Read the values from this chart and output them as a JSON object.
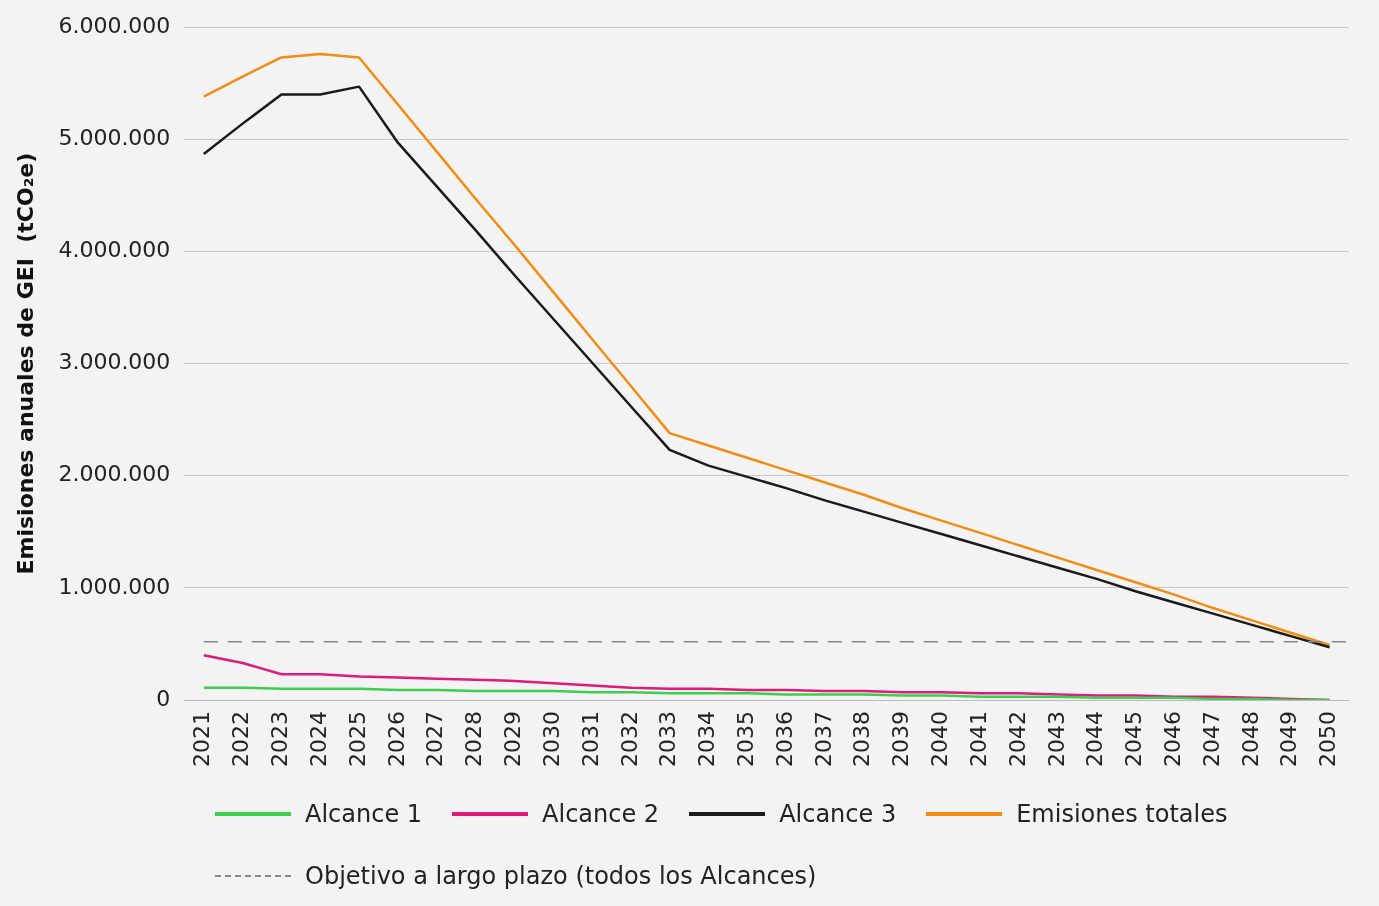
{
  "chart_data": {
    "type": "line",
    "ylabel": "Emisiones anuales de GEI  (tCO₂e)",
    "categories": [
      "2021",
      "2022",
      "2023",
      "2024",
      "2025",
      "2026",
      "2027",
      "2028",
      "2029",
      "2030",
      "2031",
      "2032",
      "2033",
      "2034",
      "2035",
      "2036",
      "2037",
      "2038",
      "2039",
      "2040",
      "2041",
      "2042",
      "2043",
      "2044",
      "2045",
      "2046",
      "2047",
      "2048",
      "2049",
      "2050"
    ],
    "series": [
      {
        "name": "Alcance 1",
        "color": "#3ccf4e",
        "values": [
          110000,
          110000,
          100000,
          100000,
          100000,
          90000,
          90000,
          80000,
          80000,
          80000,
          70000,
          70000,
          60000,
          60000,
          60000,
          50000,
          50000,
          50000,
          40000,
          40000,
          30000,
          30000,
          30000,
          20000,
          20000,
          20000,
          10000,
          10000,
          0,
          0
        ]
      },
      {
        "name": "Alcance 2",
        "color": "#e0197d",
        "values": [
          400000,
          330000,
          230000,
          230000,
          210000,
          200000,
          190000,
          180000,
          170000,
          150000,
          130000,
          110000,
          100000,
          100000,
          90000,
          90000,
          80000,
          80000,
          70000,
          70000,
          60000,
          60000,
          50000,
          40000,
          40000,
          30000,
          30000,
          20000,
          10000,
          0
        ]
      },
      {
        "name": "Alcance 3",
        "color": "#1a1a1a",
        "values": [
          4870000,
          5140000,
          5400000,
          5400000,
          5470000,
          4970000,
          4580000,
          4190000,
          3790000,
          3400000,
          3010000,
          2620000,
          2230000,
          2090000,
          1990000,
          1890000,
          1780000,
          1680000,
          1580000,
          1480000,
          1380000,
          1280000,
          1180000,
          1080000,
          970000,
          870000,
          770000,
          670000,
          570000,
          470000
        ]
      },
      {
        "name": "Emisiones totales",
        "color": "#f28c12",
        "values": [
          5380000,
          5560000,
          5730000,
          5760000,
          5730000,
          5310000,
          4890000,
          4470000,
          4060000,
          3640000,
          3220000,
          2800000,
          2380000,
          2270000,
          2160000,
          2050000,
          1940000,
          1830000,
          1710000,
          1600000,
          1490000,
          1380000,
          1270000,
          1160000,
          1050000,
          940000,
          820000,
          710000,
          600000,
          490000
        ]
      }
    ],
    "ylim": [
      0,
      6000000
    ],
    "yticks": [
      {
        "value": 0,
        "label": "0"
      },
      {
        "value": 1000000,
        "label": "1.000.000"
      },
      {
        "value": 2000000,
        "label": "2.000.000"
      },
      {
        "value": 3000000,
        "label": "3.000.000"
      },
      {
        "value": 4000000,
        "label": "4.000.000"
      },
      {
        "value": 5000000,
        "label": "5.000.000"
      },
      {
        "value": 6000000,
        "label": "6.000.000"
      }
    ],
    "ref_lines": [
      {
        "axis": "y",
        "value": 520000,
        "label": "Objetivo a largo plazo (todos los Alcances)",
        "color": "#888888",
        "line_style": "dashed"
      }
    ],
    "grid": "y",
    "legend": "bottom",
    "marker": "none",
    "line_style": "solid"
  }
}
